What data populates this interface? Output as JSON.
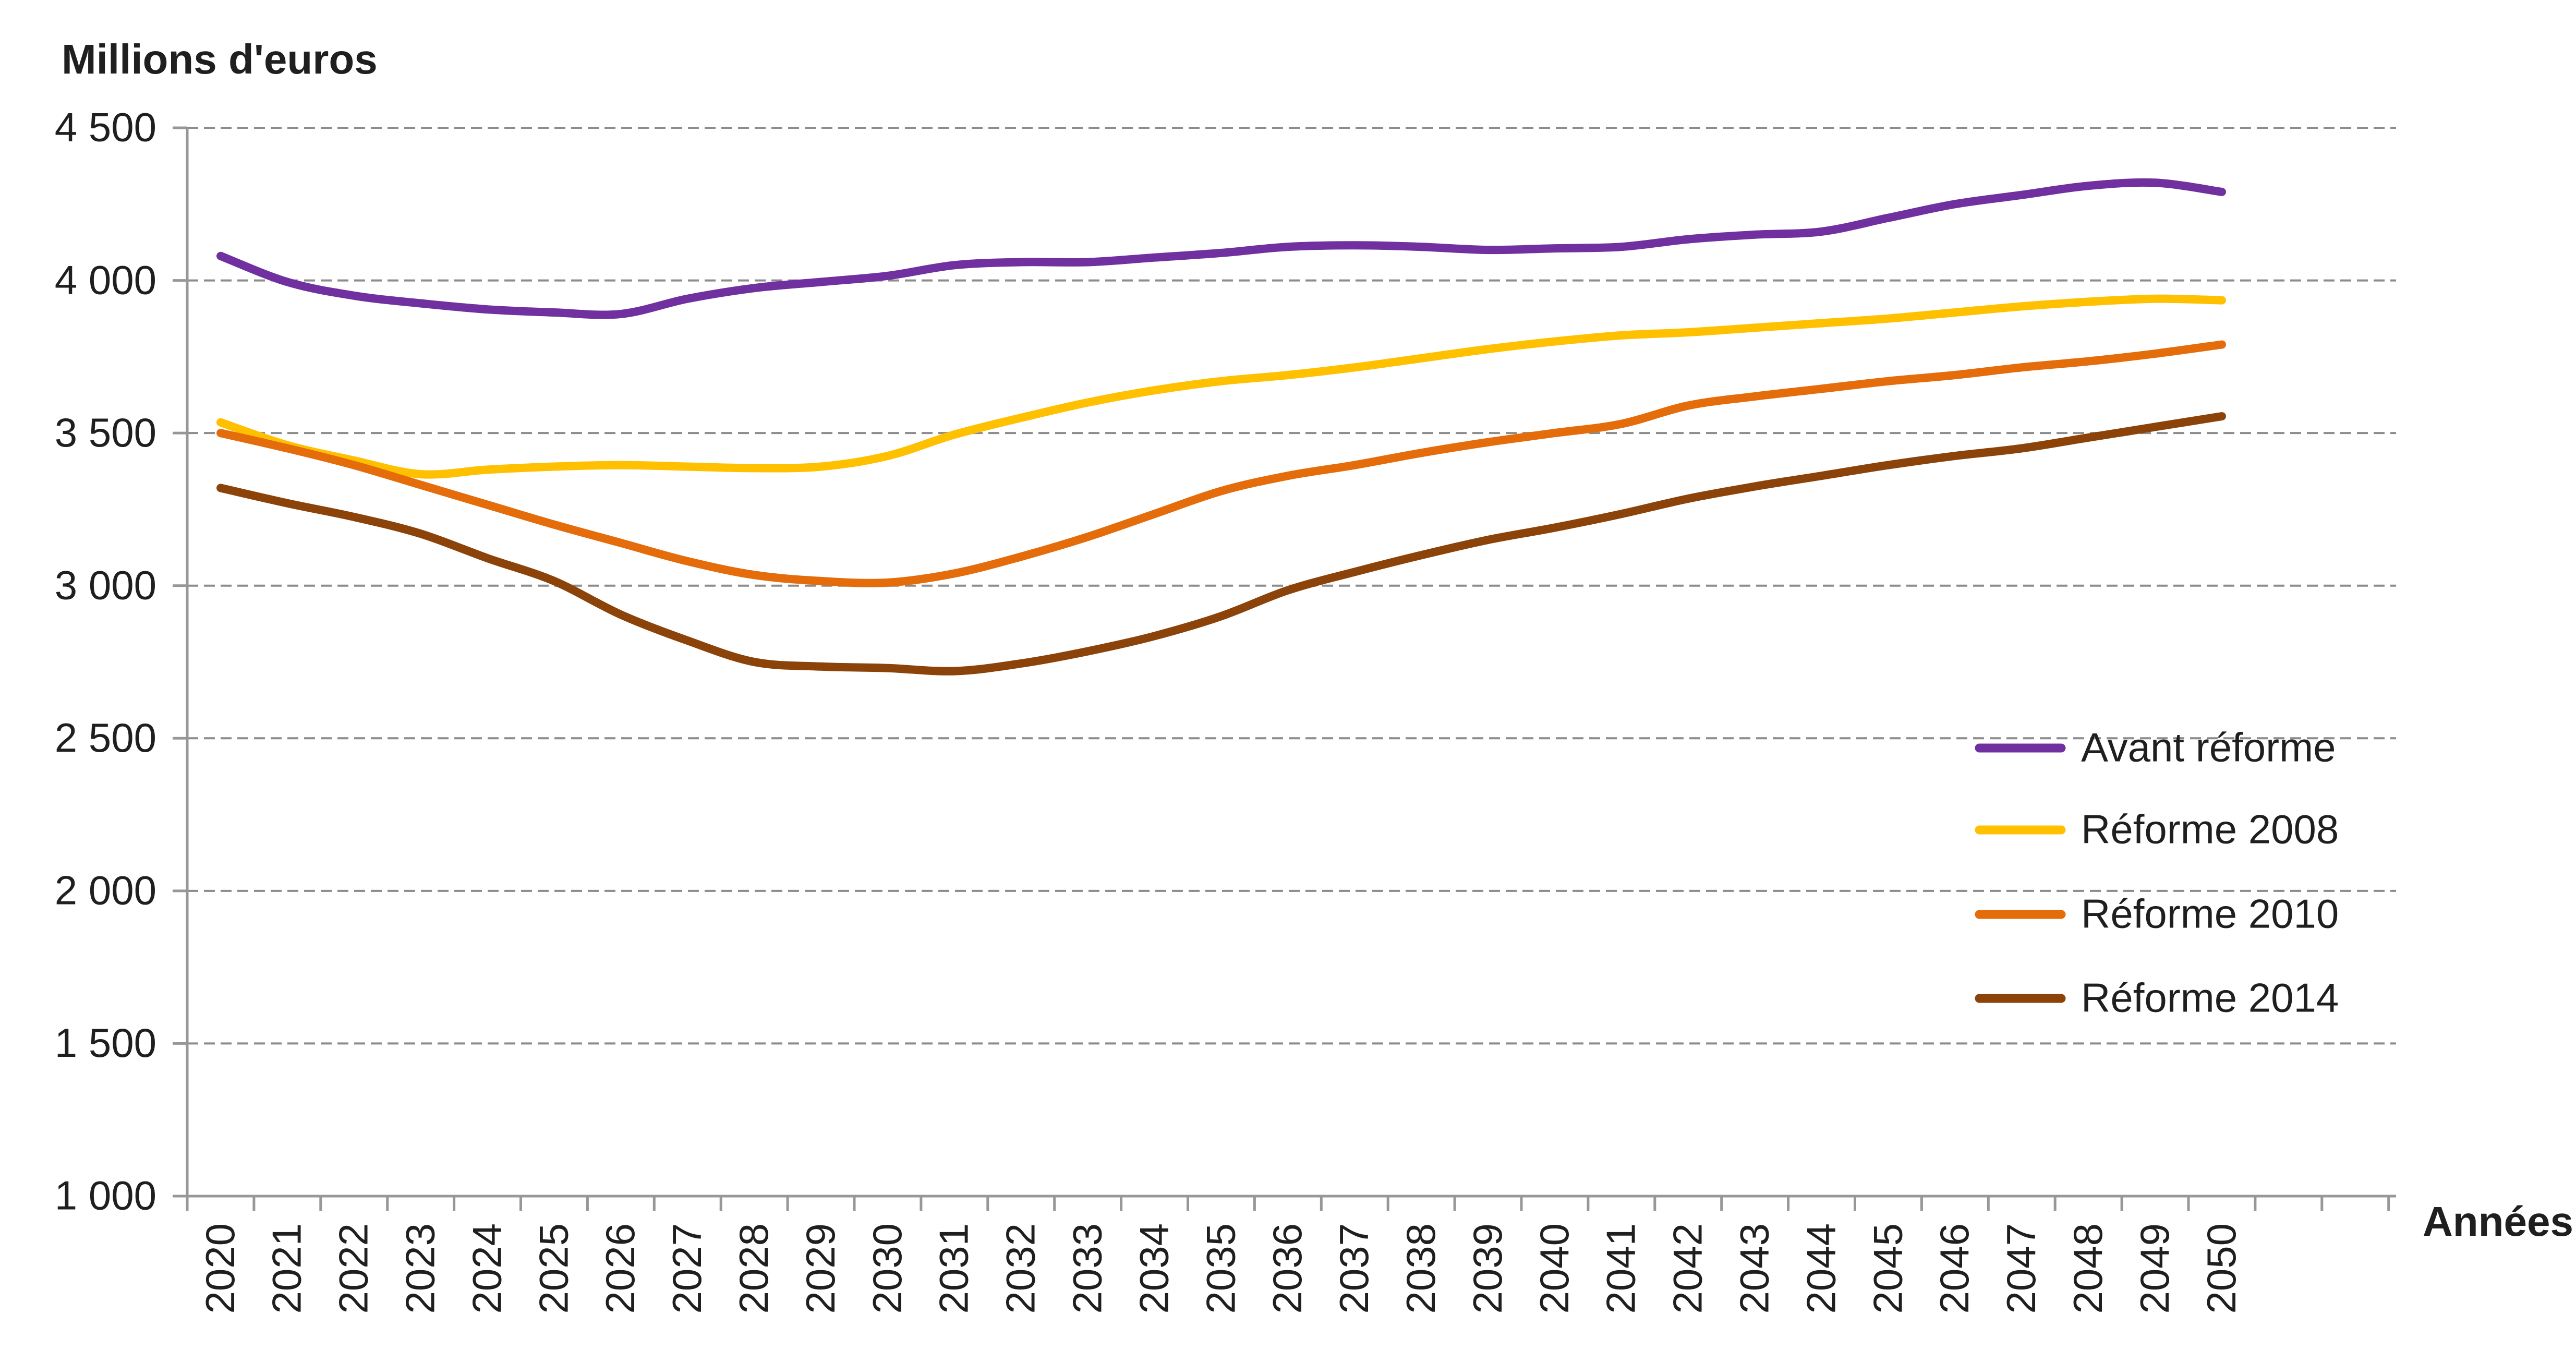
{
  "chart_data": {
    "type": "line",
    "title": "",
    "ylabel": "Millions d'euros",
    "xlabel": "Années",
    "ylim": [
      1000,
      4500
    ],
    "ytick_step": 500,
    "grid": "horizontal-dashed",
    "legend_position": "inside-right",
    "y_tick_labels": [
      "4 500",
      "4 000",
      "3 500",
      "3 000",
      "2 500",
      "2 000",
      "1 500",
      "1 000"
    ],
    "categories": [
      "2020",
      "2021",
      "2022",
      "2023",
      "2024",
      "2025",
      "2026",
      "2027",
      "2028",
      "2029",
      "2030",
      "2031",
      "2032",
      "2033",
      "2034",
      "2035",
      "2036",
      "2037",
      "2038",
      "2039",
      "2040",
      "2041",
      "2042",
      "2043",
      "2044",
      "2045",
      "2046",
      "2047",
      "2048",
      "2049",
      "2050"
    ],
    "series": [
      {
        "name": "Avant réforme",
        "color": "#7030A0",
        "values": [
          4080,
          3995,
          3950,
          3925,
          3905,
          3895,
          3890,
          3940,
          3975,
          3995,
          4015,
          4050,
          4060,
          4060,
          4075,
          4090,
          4110,
          4115,
          4110,
          4100,
          4105,
          4110,
          4135,
          4150,
          4160,
          4205,
          4250,
          4280,
          4310,
          4320,
          4290
        ]
      },
      {
        "name": "Réforme 2008",
        "color": "#FFC000",
        "values": [
          3535,
          3460,
          3410,
          3365,
          3380,
          3390,
          3395,
          3390,
          3385,
          3390,
          3425,
          3495,
          3550,
          3600,
          3640,
          3670,
          3690,
          3715,
          3745,
          3775,
          3800,
          3820,
          3830,
          3845,
          3860,
          3875,
          3895,
          3915,
          3930,
          3940,
          3935
        ]
      },
      {
        "name": "Réforme 2010",
        "color": "#E46C0A",
        "values": [
          3500,
          3450,
          3395,
          3330,
          3265,
          3200,
          3140,
          3080,
          3035,
          3015,
          3010,
          3040,
          3095,
          3160,
          3235,
          3310,
          3360,
          3395,
          3435,
          3470,
          3500,
          3530,
          3590,
          3620,
          3645,
          3670,
          3690,
          3715,
          3735,
          3760,
          3790
        ]
      },
      {
        "name": "Réforme 2014",
        "color": "#8B4309",
        "values": [
          3320,
          3270,
          3225,
          3170,
          3090,
          3015,
          2905,
          2820,
          2750,
          2735,
          2730,
          2720,
          2745,
          2785,
          2835,
          2900,
          2985,
          3045,
          3100,
          3150,
          3190,
          3235,
          3285,
          3325,
          3360,
          3395,
          3425,
          3450,
          3485,
          3520,
          3555
        ]
      }
    ]
  }
}
